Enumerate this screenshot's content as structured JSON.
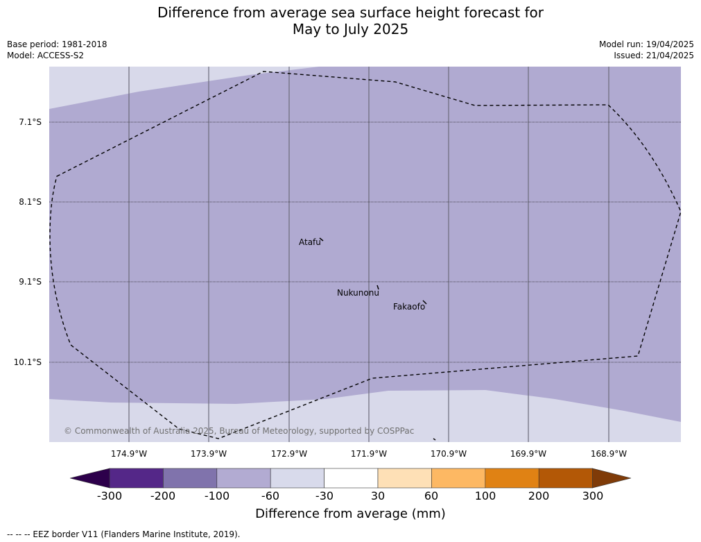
{
  "title_line1": "Difference from average sea surface height forecast for",
  "title_line2": "May to July 2025",
  "meta_left": [
    "Base period: 1981-2018",
    "Model: ACCESS-S2"
  ],
  "meta_right": [
    "Model run: 19/04/2025",
    "Issued: 21/04/2025"
  ],
  "lat_labels": [
    "7.1°S",
    "8.1°S",
    "9.1°S",
    "10.1°S"
  ],
  "lon_labels": [
    "174.9°W",
    "173.9°W",
    "172.9°W",
    "171.9°W",
    "170.9°W",
    "169.9°W",
    "168.9°W"
  ],
  "places": [
    "Atafu",
    "Nukunonu",
    "Fakaofo"
  ],
  "copyright": "© Commonwealth of Australia 2025, Bureau of Meteorology, supported by COSPPac",
  "colorbar": {
    "ticks": [
      "-300",
      "-200",
      "-100",
      "-60",
      "-30",
      "30",
      "60",
      "100",
      "200",
      "300"
    ],
    "colors": [
      "#2d004b",
      "#542788",
      "#8073ac",
      "#b2abd2",
      "#d8daeb",
      "#ffffff",
      "#fee0b6",
      "#fdb863",
      "#e08214",
      "#b35806",
      "#7f3b08"
    ],
    "label": "Difference from average (mm)"
  },
  "footer": "--  --  -- EEZ border V11 (Flanders Marine Institute, 2019)."
}
